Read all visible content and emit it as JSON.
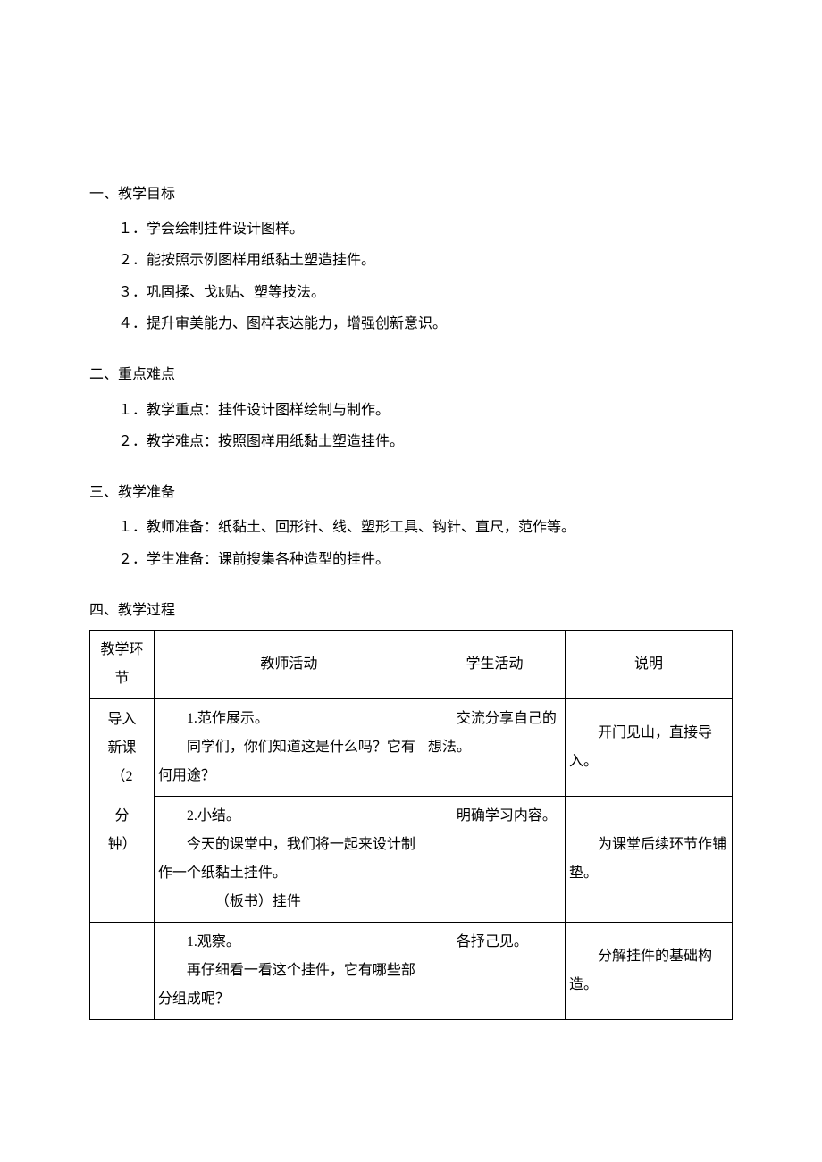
{
  "sections": {
    "s1": {
      "title": "一、教学目标",
      "items": [
        "１．学会绘制挂件设计图样。",
        "２．能按照示例图样用纸黏土塑造挂件。",
        "３．巩固揉、戈k贴、塑等技法。",
        "４．提升审美能力、图样表达能力，增强创新意识。"
      ]
    },
    "s2": {
      "title": "二、重点难点",
      "items": [
        "１．教学重点：挂件设计图样绘制与制作。",
        "２．教学难点：按照图样用纸黏土塑造挂件。"
      ]
    },
    "s3": {
      "title": "三、教学准备",
      "items": [
        "１．教师准备：纸黏土、回形针、线、塑形工具、钩针、直尺，范作等。",
        "２．学生准备：课前搜集各种造型的挂件。"
      ]
    },
    "s4": {
      "title": "四、教学过程"
    }
  },
  "table": {
    "headers": {
      "stage": "教学环节",
      "teacher": "教师活动",
      "student": "学生活动",
      "note": "说明"
    },
    "rows": {
      "r1": {
        "stage_l1": "导入",
        "stage_l2": "新课",
        "stage_l3": "（2",
        "stage_l4": "分",
        "stage_l5": "钟）",
        "t1_l1": "1.范作展示。",
        "t1_l2": "同学们，你们知道这是什么吗？它有何用途？",
        "s1": "交流分享自己的想法。",
        "n1": "开门见山，直接导入。",
        "t2_l1": "2.小结。",
        "t2_l2": "今天的课堂中，我们将一起来设计制作一个纸黏土挂件。",
        "t2_l3": "（板书）挂件",
        "s2": "明确学习内容。",
        "n2": "为课堂后续环节作铺垫。"
      },
      "r2": {
        "stage": "",
        "t_l1": "1.观察。",
        "t_l2": "再仔细看一看这个挂件，它有哪些部分组成呢？",
        "s": "各抒己见。",
        "n": "分解挂件的基础构造。"
      }
    }
  }
}
